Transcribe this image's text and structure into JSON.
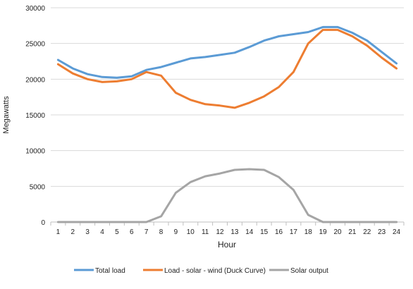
{
  "chart_data": {
    "type": "line",
    "title": "",
    "xlabel": "Hour",
    "ylabel": "Megawatts",
    "x": [
      1,
      2,
      3,
      4,
      5,
      6,
      7,
      8,
      9,
      10,
      11,
      12,
      13,
      14,
      15,
      16,
      17,
      18,
      19,
      20,
      21,
      22,
      23,
      24
    ],
    "ylim": [
      0,
      30000
    ],
    "yticks": [
      0,
      5000,
      10000,
      15000,
      20000,
      25000,
      30000
    ],
    "grid": true,
    "legend_position": "bottom",
    "series": [
      {
        "name": "Total load",
        "color": "#5b9bd5",
        "values": [
          22700,
          21500,
          20700,
          20300,
          20200,
          20400,
          21300,
          21700,
          22300,
          22900,
          23100,
          23400,
          23700,
          24500,
          25400,
          26000,
          26300,
          26600,
          27300,
          27300,
          26500,
          25400,
          23800,
          22200
        ]
      },
      {
        "name": "Load - solar - wind (Duck Curve)",
        "color": "#ed7d31",
        "values": [
          22100,
          20800,
          20000,
          19600,
          19700,
          20000,
          21000,
          20500,
          18100,
          17100,
          16500,
          16300,
          16000,
          16700,
          17600,
          18900,
          21000,
          25000,
          26900,
          26900,
          26000,
          24700,
          23000,
          21500
        ]
      },
      {
        "name": "Solar output",
        "color": "#a5a5a5",
        "values": [
          0,
          0,
          0,
          0,
          0,
          0,
          0,
          800,
          4100,
          5600,
          6400,
          6800,
          7300,
          7400,
          7300,
          6300,
          4500,
          1000,
          0,
          0,
          0,
          0,
          0,
          0
        ]
      }
    ]
  }
}
